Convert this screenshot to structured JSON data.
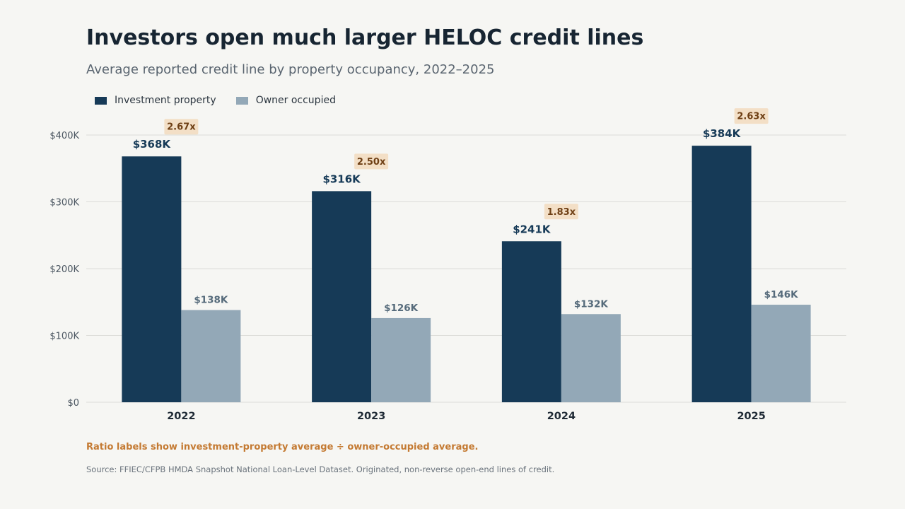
{
  "header": {
    "title": "Investors open much larger HELOC credit lines",
    "subtitle": "Average reported credit line by property occupancy, 2022–2025"
  },
  "legend": {
    "items": [
      {
        "label": "Investment property",
        "color": "#163a57"
      },
      {
        "label": "Owner occupied",
        "color": "#93a8b7"
      }
    ]
  },
  "footer": {
    "note": "Ratio labels show investment-property average ÷ owner-occupied average.",
    "source": "Source: FFIEC/CFPB HMDA Snapshot National Loan-Level Dataset. Originated, non-reverse open-end lines of credit."
  },
  "colors": {
    "investment": "#163a57",
    "owner": "#93a8b7",
    "ratio_bg": "#f3dfc6",
    "ratio_text": "#6e3f14",
    "note": "#c47a32",
    "grid": "#dcdcd8",
    "owner_label": "#566b7b"
  },
  "chart_data": {
    "type": "bar",
    "title": "Investors open much larger HELOC credit lines",
    "subtitle": "Average reported credit line by property occupancy, 2022–2025",
    "categories": [
      "2022",
      "2023",
      "2024",
      "2025"
    ],
    "series": [
      {
        "name": "Investment property",
        "values": [
          368,
          316,
          241,
          384
        ],
        "labels": [
          "$368K",
          "$316K",
          "$241K",
          "$384K"
        ]
      },
      {
        "name": "Owner occupied",
        "values": [
          138,
          126,
          132,
          146
        ],
        "labels": [
          "$138K",
          "$126K",
          "$132K",
          "$146K"
        ]
      }
    ],
    "ratios": [
      "2.67x",
      "2.50x",
      "1.83x",
      "2.63x"
    ],
    "unit": "thousands of dollars",
    "ylim": [
      0,
      400
    ],
    "yticks": [
      0,
      100,
      200,
      300,
      400
    ],
    "ytick_labels": [
      "$0",
      "$100K",
      "$200K",
      "$300K",
      "$400K"
    ],
    "grid": true,
    "legend_position": "top-left"
  }
}
